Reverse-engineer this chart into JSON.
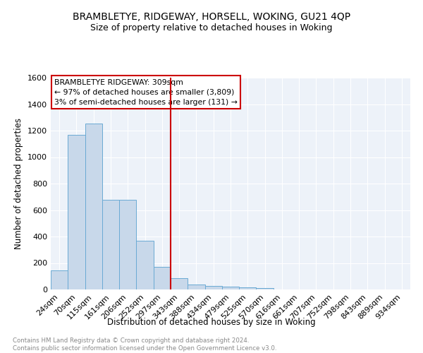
{
  "title1": "BRAMBLETYE, RIDGEWAY, HORSELL, WOKING, GU21 4QP",
  "title2": "Size of property relative to detached houses in Woking",
  "xlabel": "Distribution of detached houses by size in Woking",
  "ylabel": "Number of detached properties",
  "categories": [
    "24sqm",
    "70sqm",
    "115sqm",
    "161sqm",
    "206sqm",
    "252sqm",
    "297sqm",
    "343sqm",
    "388sqm",
    "434sqm",
    "479sqm",
    "525sqm",
    "570sqm",
    "616sqm",
    "661sqm",
    "707sqm",
    "752sqm",
    "798sqm",
    "843sqm",
    "889sqm",
    "934sqm"
  ],
  "values": [
    145,
    1170,
    1255,
    680,
    680,
    370,
    170,
    85,
    35,
    25,
    20,
    15,
    12,
    0,
    0,
    0,
    0,
    0,
    0,
    0,
    0
  ],
  "bar_color": "#c8d8ea",
  "bar_edge_color": "#6aaad4",
  "vline_color": "#cc0000",
  "annotation_text": "BRAMBLETYE RIDGEWAY: 309sqm\n← 97% of detached houses are smaller (3,809)\n3% of semi-detached houses are larger (131) →",
  "annotation_box_color": "#ffffff",
  "annotation_box_edge": "#cc0000",
  "footnote": "Contains HM Land Registry data © Crown copyright and database right 2024.\nContains public sector information licensed under the Open Government Licence v3.0.",
  "ylim": [
    0,
    1600
  ],
  "bg_color": "#edf2f9",
  "grid_color": "#ffffff",
  "title_fontsize": 10,
  "subtitle_fontsize": 9
}
